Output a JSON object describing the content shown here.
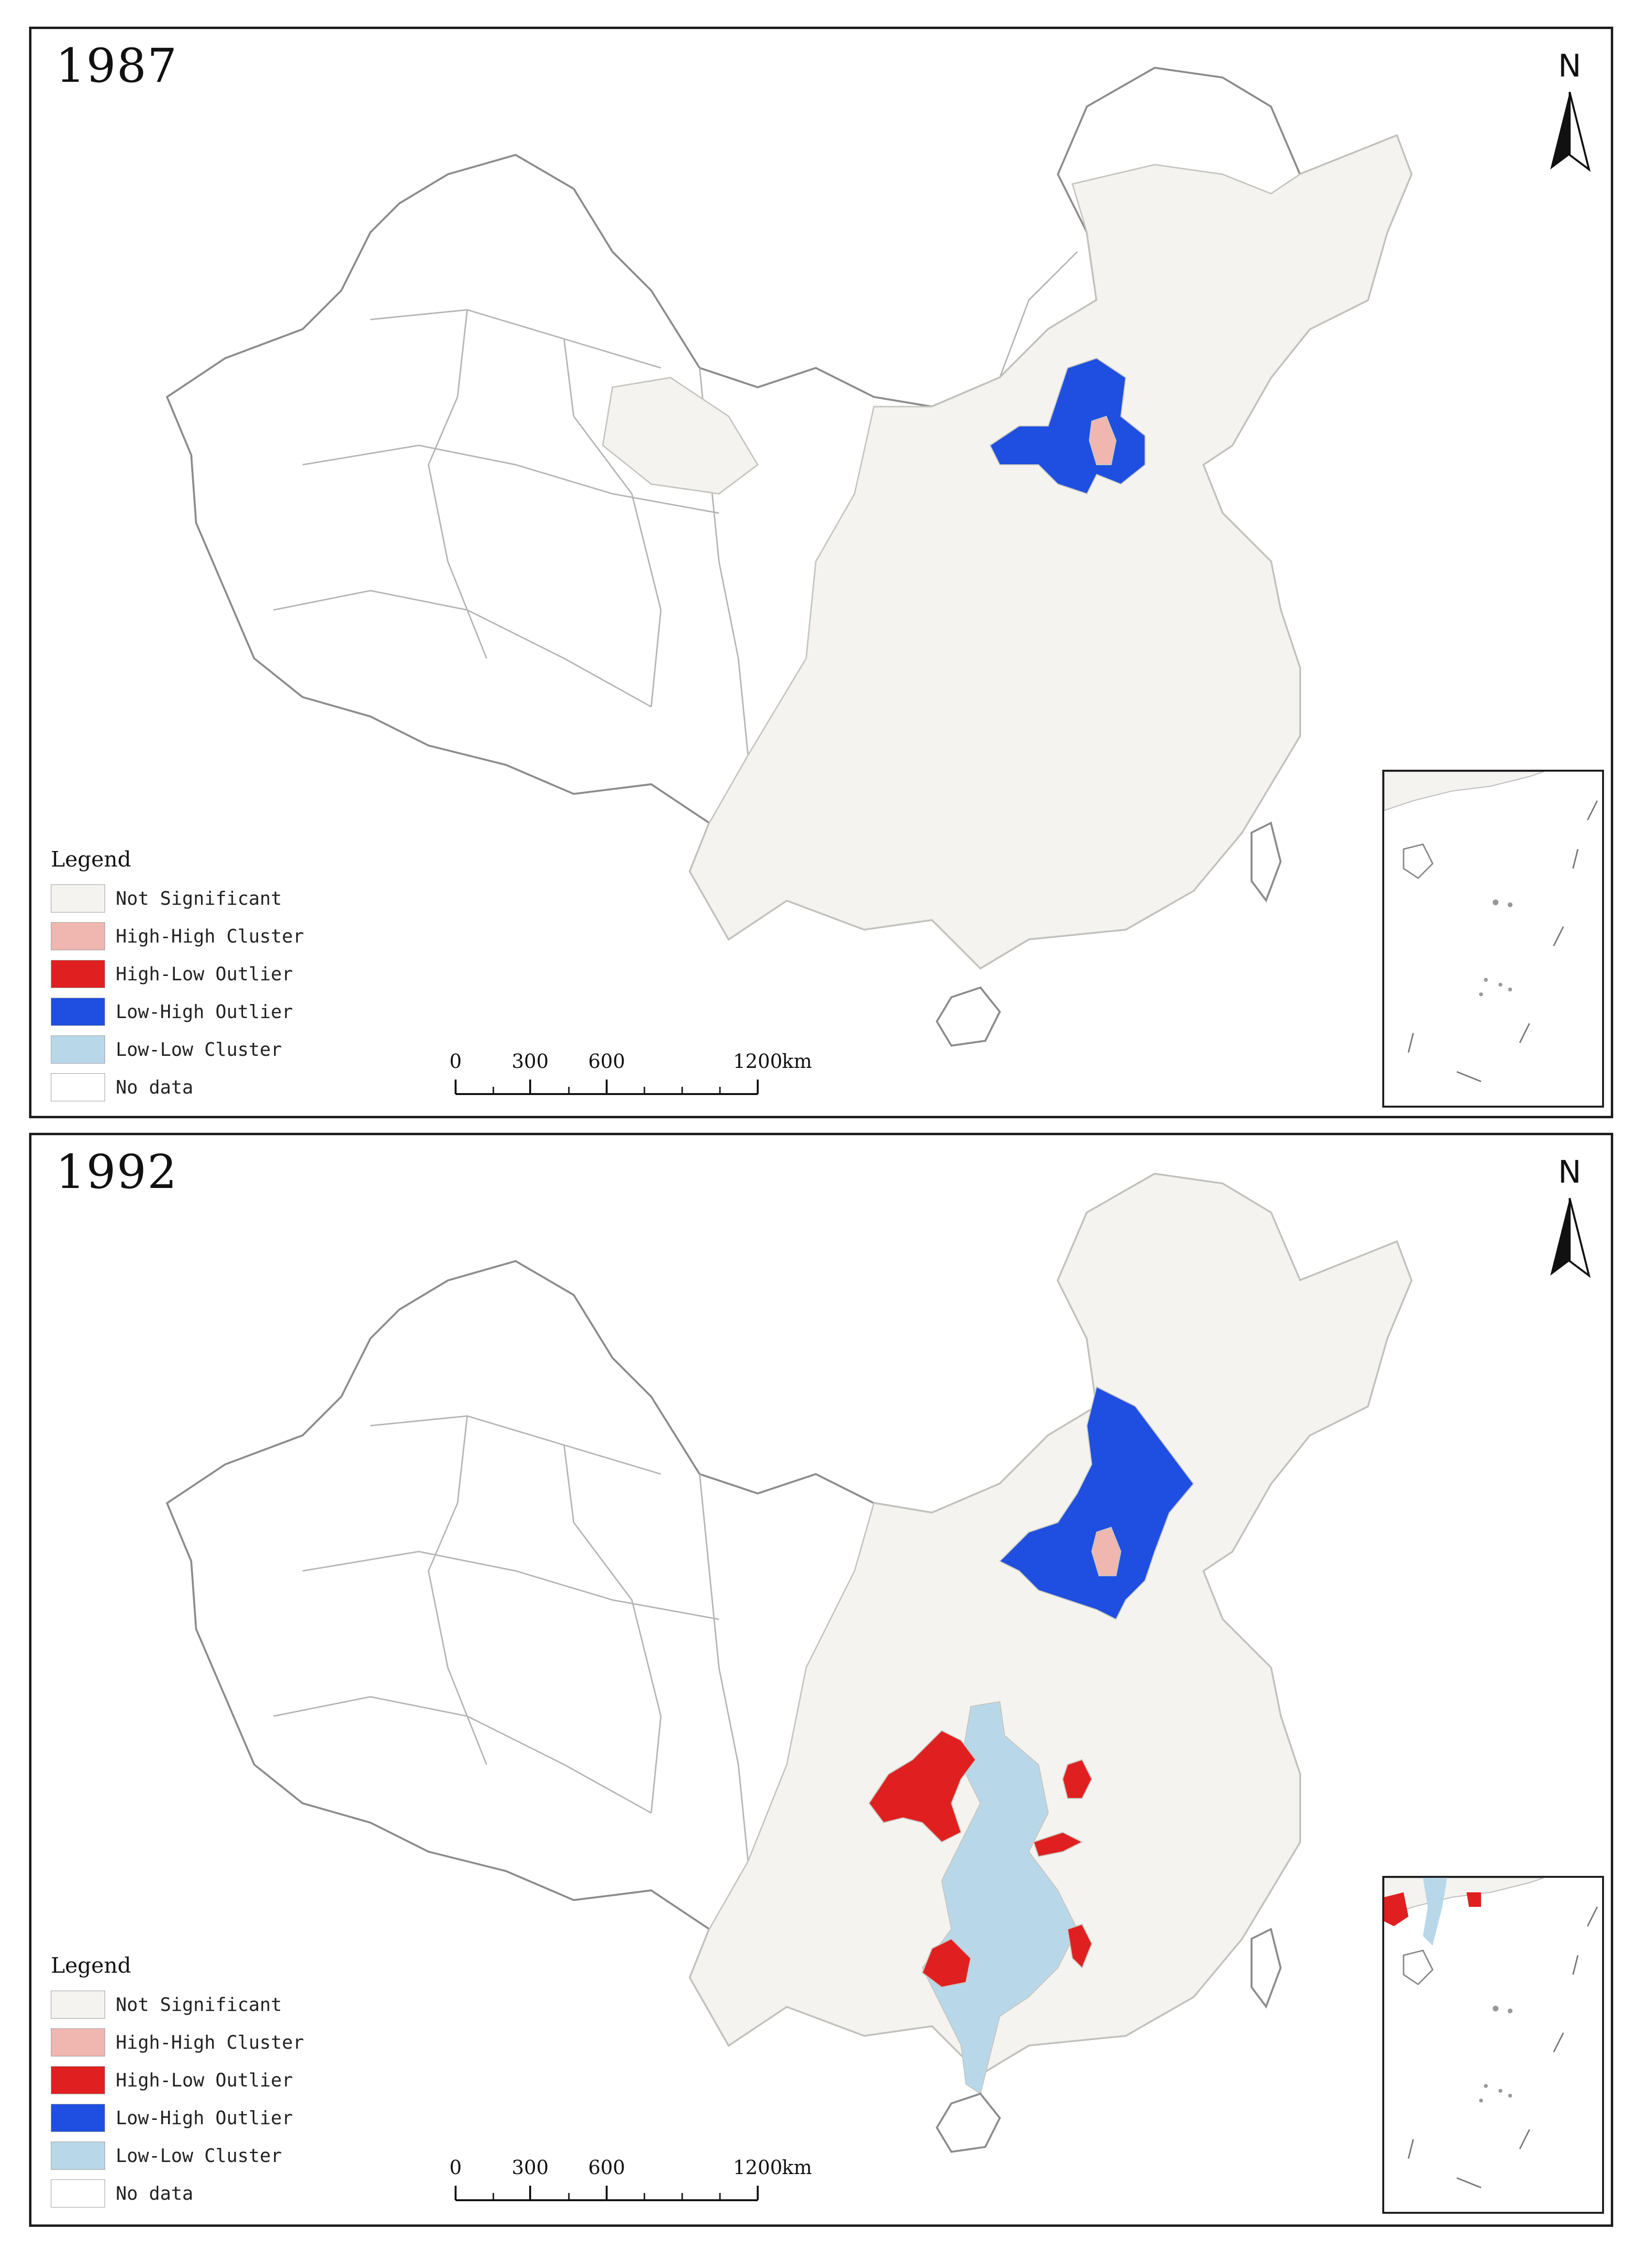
{
  "panels": [
    {
      "year": "1987",
      "north_label": "N",
      "legend": {
        "title": "Legend",
        "items": [
          {
            "label": "Not Significant",
            "color": "#f4f3ef"
          },
          {
            "label": "High-High Cluster",
            "color": "#f0b6b0"
          },
          {
            "label": "High-Low Outlier",
            "color": "#e02020"
          },
          {
            "label": "Low-High Outlier",
            "color": "#1f4fe0"
          },
          {
            "label": "Low-Low Cluster",
            "color": "#b8d8ea"
          },
          {
            "label": "No data",
            "color": "#ffffff"
          }
        ]
      },
      "scale_bar": {
        "ticks": [
          "0",
          "300",
          "600",
          "1200"
        ],
        "unit": "km"
      }
    },
    {
      "year": "1992",
      "north_label": "N",
      "legend": {
        "title": "Legend",
        "items": [
          {
            "label": "Not Significant",
            "color": "#f4f3ef"
          },
          {
            "label": "High-High Cluster",
            "color": "#f0b6b0"
          },
          {
            "label": "High-Low Outlier",
            "color": "#e02020"
          },
          {
            "label": "Low-High Outlier",
            "color": "#1f4fe0"
          },
          {
            "label": "Low-Low Cluster",
            "color": "#b8d8ea"
          },
          {
            "label": "No data",
            "color": "#ffffff"
          }
        ]
      },
      "scale_bar": {
        "ticks": [
          "0",
          "300",
          "600",
          "1200"
        ],
        "unit": "km"
      }
    }
  ]
}
